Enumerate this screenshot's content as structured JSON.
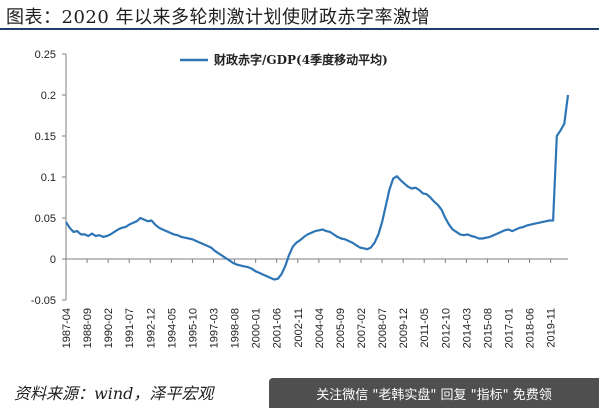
{
  "header": {
    "title": "图表：2020 年以来多轮刺激计划使财政赤字率激增"
  },
  "footer": {
    "source": "资料来源：wind，泽平宏观",
    "watermark": "关注微信 \"老韩实盘\" 回复 \"指标\" 免费领"
  },
  "colors": {
    "line": "#2e75b6",
    "axis": "#7f7f7f",
    "title_rule": "#1f3d6b"
  },
  "chart_data": {
    "type": "line",
    "title": "",
    "xlabel": "",
    "ylabel": "",
    "ylim": [
      -0.05,
      0.25
    ],
    "yticks": [
      -0.05,
      0,
      0.05,
      0.1,
      0.15,
      0.2,
      0.25
    ],
    "ytick_labels": [
      "-0.05",
      "0",
      "0.05",
      "0.1",
      "0.15",
      "0.2",
      "0.25"
    ],
    "xtick_labels": [
      "1987-04",
      "1988-09",
      "1990-02",
      "1991-07",
      "1992-12",
      "1994-05",
      "1995-10",
      "1997-03",
      "1998-08",
      "2000-01",
      "2001-06",
      "2002-11",
      "2004-04",
      "2005-09",
      "2007-02",
      "2008-07",
      "2009-12",
      "2011-05",
      "2012-10",
      "2014-03",
      "2015-08",
      "2017-01",
      "2018-06",
      "2019-11"
    ],
    "legend": {
      "position": "top-center",
      "entries": [
        "财政赤字/GDP(4季度移动平均)"
      ]
    },
    "grid": false,
    "series": [
      {
        "name": "财政赤字/GDP(4季度移动平均)",
        "x": [
          1987.25,
          1987.5,
          1987.75,
          1988.0,
          1988.25,
          1988.5,
          1988.75,
          1989.0,
          1989.25,
          1989.5,
          1989.75,
          1990.0,
          1990.25,
          1990.5,
          1990.75,
          1991.0,
          1991.25,
          1991.5,
          1991.75,
          1992.0,
          1992.25,
          1992.5,
          1992.75,
          1993.0,
          1993.25,
          1993.5,
          1993.75,
          1994.0,
          1994.25,
          1994.5,
          1994.75,
          1995.0,
          1995.25,
          1995.5,
          1995.75,
          1996.0,
          1996.25,
          1996.5,
          1996.75,
          1997.0,
          1997.25,
          1997.5,
          1997.75,
          1998.0,
          1998.25,
          1998.5,
          1998.75,
          1999.0,
          1999.25,
          1999.5,
          1999.75,
          2000.0,
          2000.25,
          2000.5,
          2000.75,
          2001.0,
          2001.25,
          2001.5,
          2001.75,
          2002.0,
          2002.25,
          2002.5,
          2002.75,
          2003.0,
          2003.25,
          2003.5,
          2003.75,
          2004.0,
          2004.25,
          2004.5,
          2004.75,
          2005.0,
          2005.25,
          2005.5,
          2005.75,
          2006.0,
          2006.25,
          2006.5,
          2006.75,
          2007.0,
          2007.25,
          2007.5,
          2007.75,
          2008.0,
          2008.25,
          2008.5,
          2008.75,
          2009.0,
          2009.25,
          2009.5,
          2009.75,
          2010.0,
          2010.25,
          2010.5,
          2010.75,
          2011.0,
          2011.25,
          2011.5,
          2011.75,
          2012.0,
          2012.25,
          2012.5,
          2012.75,
          2013.0,
          2013.25,
          2013.5,
          2013.75,
          2014.0,
          2014.25,
          2014.5,
          2014.75,
          2015.0,
          2015.25,
          2015.5,
          2015.75,
          2016.0,
          2016.25,
          2016.5,
          2016.75,
          2017.0,
          2017.25,
          2017.5,
          2017.75,
          2018.0,
          2018.25,
          2018.5,
          2018.75,
          2019.0,
          2019.25,
          2019.5,
          2019.75,
          2020.0,
          2020.25,
          2020.5,
          2020.75,
          2021.0
        ],
        "values": [
          0.045,
          0.038,
          0.033,
          0.034,
          0.03,
          0.03,
          0.028,
          0.031,
          0.028,
          0.029,
          0.027,
          0.028,
          0.03,
          0.033,
          0.036,
          0.038,
          0.039,
          0.042,
          0.044,
          0.046,
          0.05,
          0.048,
          0.046,
          0.047,
          0.042,
          0.038,
          0.036,
          0.034,
          0.032,
          0.03,
          0.029,
          0.027,
          0.026,
          0.025,
          0.024,
          0.022,
          0.02,
          0.018,
          0.016,
          0.014,
          0.01,
          0.007,
          0.004,
          0.001,
          -0.002,
          -0.005,
          -0.007,
          -0.008,
          -0.009,
          -0.01,
          -0.012,
          -0.015,
          -0.017,
          -0.019,
          -0.021,
          -0.023,
          -0.025,
          -0.024,
          -0.018,
          -0.008,
          0.005,
          0.015,
          0.02,
          0.023,
          0.027,
          0.03,
          0.032,
          0.034,
          0.035,
          0.036,
          0.034,
          0.033,
          0.03,
          0.027,
          0.025,
          0.024,
          0.022,
          0.02,
          0.017,
          0.014,
          0.013,
          0.012,
          0.014,
          0.02,
          0.03,
          0.045,
          0.065,
          0.085,
          0.098,
          0.101,
          0.096,
          0.092,
          0.088,
          0.086,
          0.087,
          0.084,
          0.08,
          0.079,
          0.075,
          0.07,
          0.066,
          0.06,
          0.05,
          0.042,
          0.036,
          0.033,
          0.03,
          0.029,
          0.03,
          0.028,
          0.027,
          0.025,
          0.025,
          0.026,
          0.027,
          0.029,
          0.031,
          0.033,
          0.035,
          0.036,
          0.034,
          0.036,
          0.038,
          0.039,
          0.041,
          0.042,
          0.043,
          0.044,
          0.045,
          0.046,
          0.047,
          0.047,
          0.15,
          0.157,
          0.165,
          0.2
        ]
      }
    ]
  }
}
